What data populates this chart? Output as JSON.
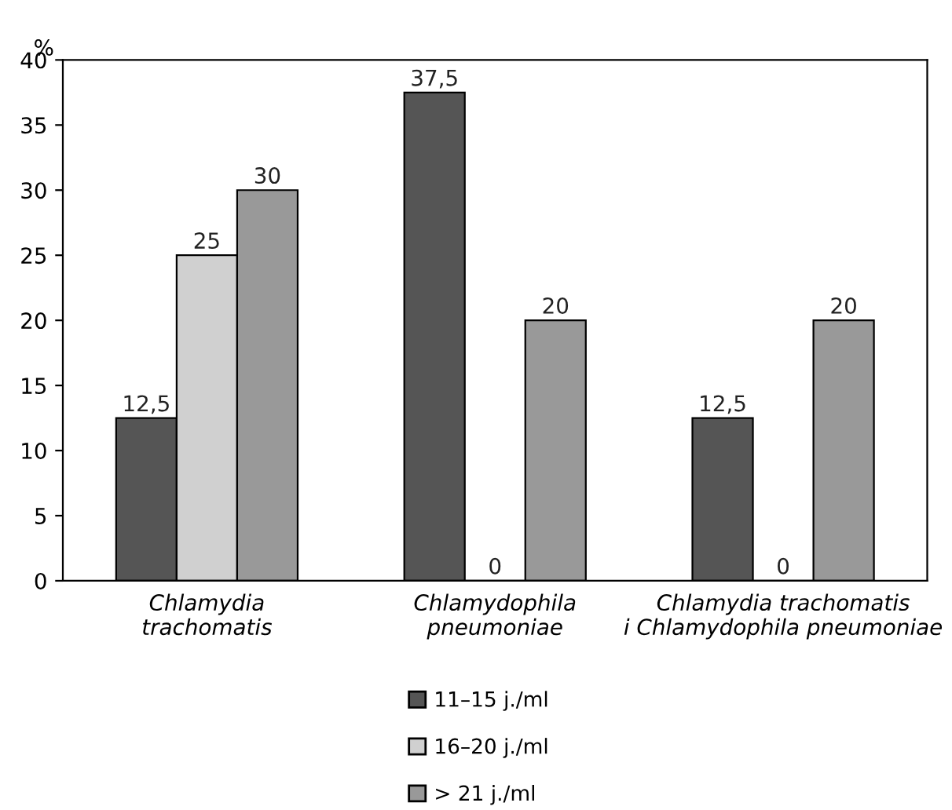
{
  "chart_data": {
    "type": "bar",
    "ylabel": "%",
    "categories": [
      "Chlamydia\ntrachomatis",
      "Chlamydophila\npneumoniae",
      "Chlamydia trachomatis\ni Chlamydophila pneumoniae"
    ],
    "series": [
      {
        "name": "11–15 j./ml",
        "color": "#555555",
        "values": [
          12.5,
          37.5,
          12.5
        ],
        "value_labels": [
          "12,5",
          "37,5",
          "12,5"
        ]
      },
      {
        "name": "16–20 j./ml",
        "color": "#d0d0d0",
        "values": [
          25,
          0,
          0
        ],
        "value_labels": [
          "25",
          "0",
          "0"
        ]
      },
      {
        "name": "> 21 j./ml",
        "color": "#999999",
        "values": [
          30,
          20,
          20
        ],
        "value_labels": [
          "30",
          "20",
          "20"
        ]
      }
    ],
    "ylim": [
      0,
      40
    ],
    "yticks": [
      0,
      5,
      10,
      15,
      20,
      25,
      30,
      35,
      40
    ],
    "grid": false,
    "legend": "bottom"
  }
}
